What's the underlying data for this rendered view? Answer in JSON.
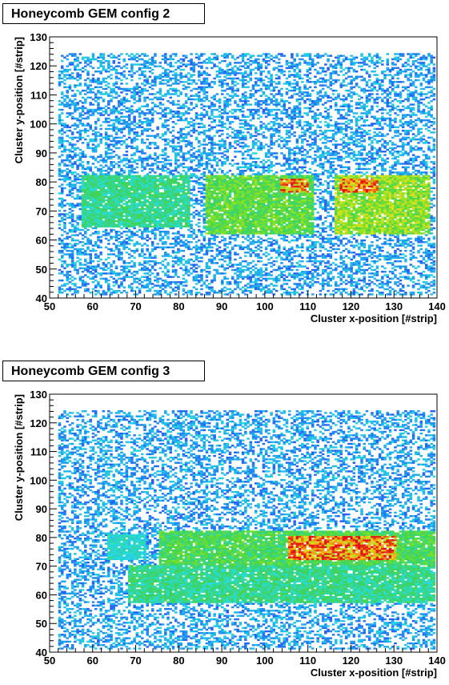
{
  "panels": [
    {
      "title": "Honeycomb GEM config 2",
      "chart_data": {
        "type": "heatmap",
        "title": "Honeycomb GEM config 2",
        "xlabel": "Cluster x-position [#strip]",
        "ylabel": "Cluster y-position [#strip]",
        "xlim": [
          50,
          140
        ],
        "ylim": [
          40,
          130
        ],
        "x_ticks": [
          "50",
          "60",
          "70",
          "80",
          "90",
          "100",
          "110",
          "120",
          "130",
          "140"
        ],
        "y_ticks": [
          "40",
          "50",
          "60",
          "70",
          "80",
          "90",
          "100",
          "110",
          "120",
          "130"
        ],
        "grid": false,
        "legend": "none",
        "hot_regions": [
          {
            "x": [
              57,
              82
            ],
            "y": [
              64,
              82
            ],
            "level": 0.45
          },
          {
            "x": [
              86,
              111
            ],
            "y": [
              62,
              82
            ],
            "level": 0.6
          },
          {
            "x": [
              116,
              138
            ],
            "y": [
              62,
              82
            ],
            "level": 0.7
          }
        ],
        "peak_regions": [
          {
            "x": [
              103,
              110
            ],
            "y": [
              76,
              81
            ],
            "level": 0.95
          },
          {
            "x": [
              117,
              126
            ],
            "y": [
              76,
              81
            ],
            "level": 1.0
          }
        ],
        "sparse_coverage": {
          "x": [
            52,
            139
          ],
          "y": [
            41,
            124
          ]
        }
      }
    },
    {
      "title": "Honeycomb GEM config 3",
      "chart_data": {
        "type": "heatmap",
        "title": "Honeycomb GEM config 3",
        "xlabel": "Cluster x-position [#strip]",
        "ylabel": "Cluster y-position [#strip]",
        "xlim": [
          50,
          140
        ],
        "ylim": [
          40,
          130
        ],
        "x_ticks": [
          "50",
          "60",
          "70",
          "80",
          "90",
          "100",
          "110",
          "120",
          "130",
          "140"
        ],
        "y_ticks": [
          "40",
          "50",
          "60",
          "70",
          "80",
          "90",
          "100",
          "110",
          "120",
          "130"
        ],
        "grid": false,
        "legend": "none",
        "hot_regions": [
          {
            "x": [
              63,
              72
            ],
            "y": [
              72,
              81
            ],
            "level": 0.35
          },
          {
            "x": [
              75,
              140
            ],
            "y": [
              70,
              82
            ],
            "level": 0.55
          },
          {
            "x": [
              68,
              140
            ],
            "y": [
              57,
              70
            ],
            "level": 0.45
          }
        ],
        "peak_regions": [
          {
            "x": [
              105,
              130
            ],
            "y": [
              72,
              80
            ],
            "level": 1.0
          }
        ],
        "sparse_coverage": {
          "x": [
            52,
            139
          ],
          "y": [
            41,
            124
          ]
        }
      }
    }
  ]
}
